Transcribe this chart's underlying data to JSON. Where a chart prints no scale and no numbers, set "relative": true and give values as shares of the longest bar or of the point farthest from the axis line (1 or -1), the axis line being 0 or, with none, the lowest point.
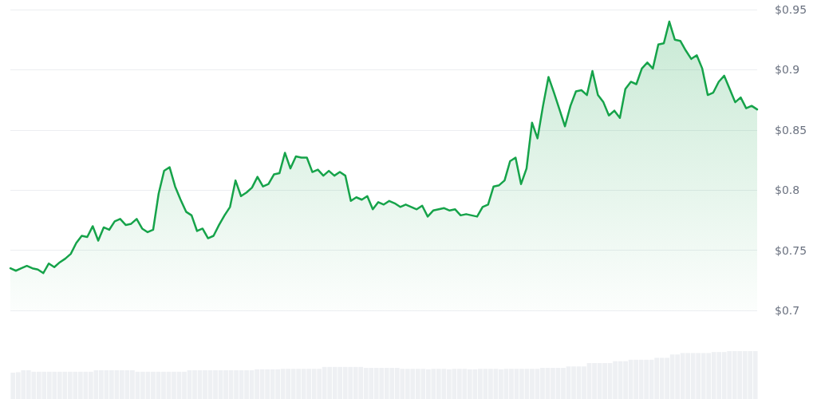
{
  "chart_data": [
    {
      "type": "area",
      "color": "#16a34a",
      "ylim": [
        0.7,
        0.95
      ],
      "tick_labels": "y",
      "grid": "y",
      "line_style": "solid",
      "yticks": [
        {
          "value": 0.7,
          "label": "$0.7"
        },
        {
          "value": 0.75,
          "label": "$0.75"
        },
        {
          "value": 0.8,
          "label": "$0.8"
        },
        {
          "value": 0.85,
          "label": "$0.85"
        },
        {
          "value": 0.9,
          "label": "$0.9"
        },
        {
          "value": 0.95,
          "label": "$0.95"
        }
      ],
      "categories": [
        null,
        null,
        null,
        null,
        null,
        null,
        null,
        null,
        null,
        null,
        null,
        null,
        null,
        null,
        null,
        null,
        null,
        null,
        null,
        null,
        null,
        null,
        null,
        null,
        null,
        null,
        null,
        null,
        null,
        null,
        null,
        null,
        null,
        null,
        null,
        null,
        null,
        null,
        null,
        null,
        null,
        null,
        null,
        null,
        null,
        null,
        null,
        null,
        null,
        null,
        null,
        null,
        null,
        null,
        null,
        null,
        null,
        null,
        null,
        null,
        null,
        null,
        null,
        null,
        null,
        null,
        null,
        null,
        null,
        null,
        null,
        null,
        null,
        null,
        null,
        null,
        null,
        null,
        null,
        null,
        null,
        null,
        null,
        null,
        null,
        null,
        null,
        null,
        null,
        null,
        null,
        null,
        null,
        null,
        null,
        null,
        null,
        null,
        null,
        null,
        null,
        null,
        null,
        null,
        null,
        null,
        null,
        null,
        null,
        null,
        null,
        null,
        null,
        null,
        null,
        null,
        null,
        null,
        null,
        null,
        null,
        null,
        null,
        null,
        null,
        null,
        null,
        null,
        null,
        null,
        null,
        null,
        null,
        null,
        null,
        null,
        null
      ],
      "values": [
        0.735,
        0.733,
        0.735,
        0.737,
        0.735,
        0.734,
        0.731,
        0.739,
        0.736,
        0.74,
        0.743,
        0.747,
        0.756,
        0.762,
        0.761,
        0.77,
        0.758,
        0.769,
        0.767,
        0.774,
        0.776,
        0.771,
        0.772,
        0.776,
        0.768,
        0.765,
        0.767,
        0.797,
        0.816,
        0.819,
        0.803,
        0.792,
        0.782,
        0.779,
        0.766,
        0.768,
        0.76,
        0.762,
        0.771,
        0.779,
        0.786,
        0.808,
        0.795,
        0.798,
        0.802,
        0.811,
        0.803,
        0.805,
        0.813,
        0.814,
        0.831,
        0.818,
        0.828,
        0.827,
        0.827,
        0.815,
        0.817,
        0.812,
        0.816,
        0.812,
        0.815,
        0.812,
        0.791,
        0.794,
        0.792,
        0.795,
        0.784,
        0.79,
        0.788,
        0.791,
        0.789,
        0.786,
        0.788,
        0.786,
        0.784,
        0.787,
        0.778,
        0.783,
        0.784,
        0.785,
        0.783,
        0.784,
        0.779,
        0.78,
        0.779,
        0.778,
        0.786,
        0.788,
        0.803,
        0.804,
        0.808,
        0.824,
        0.827,
        0.805,
        0.818,
        0.856,
        0.843,
        0.87,
        0.894,
        0.881,
        0.867,
        0.853,
        0.87,
        0.882,
        0.883,
        0.879,
        0.899,
        0.879,
        0.873,
        0.862,
        0.866,
        0.86,
        0.884,
        0.89,
        0.888,
        0.901,
        0.906,
        0.901,
        0.921,
        0.922,
        0.94,
        0.925,
        0.924,
        0.916,
        0.909,
        0.912,
        0.901,
        0.879,
        0.881,
        0.89,
        0.895,
        0.884,
        0.873,
        0.877,
        0.868,
        0.87,
        0.867
      ]
    },
    {
      "type": "bar",
      "relative": true,
      "color": "#eef0f3",
      "tick_labels": false,
      "categories": [
        null,
        null,
        null,
        null,
        null,
        null,
        null,
        null,
        null,
        null,
        null,
        null,
        null,
        null,
        null,
        null,
        null,
        null,
        null,
        null,
        null,
        null,
        null,
        null,
        null,
        null,
        null,
        null,
        null,
        null,
        null,
        null,
        null,
        null,
        null,
        null,
        null,
        null,
        null,
        null,
        null,
        null,
        null,
        null,
        null,
        null,
        null,
        null,
        null,
        null,
        null,
        null,
        null,
        null,
        null,
        null,
        null,
        null,
        null,
        null,
        null,
        null,
        null,
        null,
        null,
        null,
        null,
        null,
        null,
        null,
        null,
        null,
        null,
        null,
        null,
        null,
        null,
        null,
        null,
        null,
        null,
        null,
        null,
        null,
        null,
        null,
        null,
        null,
        null,
        null,
        null,
        null,
        null,
        null,
        null,
        null,
        null,
        null,
        null,
        null,
        null,
        null,
        null,
        null,
        null,
        null,
        null,
        null,
        null,
        null,
        null,
        null,
        null,
        null,
        null,
        null,
        null,
        null,
        null,
        null,
        null,
        null,
        null,
        null,
        null,
        null,
        null,
        null,
        null,
        null,
        null,
        null,
        null,
        null,
        null,
        null,
        null,
        null,
        null,
        null,
        null,
        null,
        null,
        null
      ],
      "values": [
        0.55,
        0.56,
        0.6,
        0.6,
        0.57,
        0.57,
        0.57,
        0.57,
        0.57,
        0.57,
        0.57,
        0.57,
        0.57,
        0.57,
        0.57,
        0.57,
        0.6,
        0.6,
        0.6,
        0.6,
        0.6,
        0.6,
        0.6,
        0.6,
        0.57,
        0.57,
        0.57,
        0.57,
        0.57,
        0.57,
        0.57,
        0.57,
        0.57,
        0.57,
        0.6,
        0.6,
        0.6,
        0.6,
        0.6,
        0.6,
        0.6,
        0.6,
        0.6,
        0.6,
        0.6,
        0.6,
        0.6,
        0.62,
        0.62,
        0.62,
        0.62,
        0.62,
        0.63,
        0.63,
        0.63,
        0.63,
        0.63,
        0.63,
        0.63,
        0.63,
        0.67,
        0.67,
        0.67,
        0.67,
        0.67,
        0.67,
        0.67,
        0.67,
        0.65,
        0.65,
        0.65,
        0.65,
        0.65,
        0.65,
        0.65,
        0.63,
        0.63,
        0.63,
        0.63,
        0.63,
        0.62,
        0.63,
        0.63,
        0.63,
        0.62,
        0.63,
        0.63,
        0.63,
        0.62,
        0.62,
        0.63,
        0.63,
        0.63,
        0.63,
        0.62,
        0.63,
        0.63,
        0.63,
        0.63,
        0.63,
        0.63,
        0.63,
        0.65,
        0.65,
        0.65,
        0.65,
        0.65,
        0.68,
        0.68,
        0.68,
        0.68,
        0.75,
        0.75,
        0.75,
        0.75,
        0.75,
        0.79,
        0.79,
        0.79,
        0.82,
        0.82,
        0.82,
        0.82,
        0.82,
        0.86,
        0.86,
        0.86,
        0.93,
        0.93,
        0.96,
        0.96,
        0.96,
        0.96,
        0.96,
        0.96,
        0.98,
        0.98,
        0.98,
        1,
        1,
        1,
        1,
        1,
        1
      ]
    }
  ]
}
